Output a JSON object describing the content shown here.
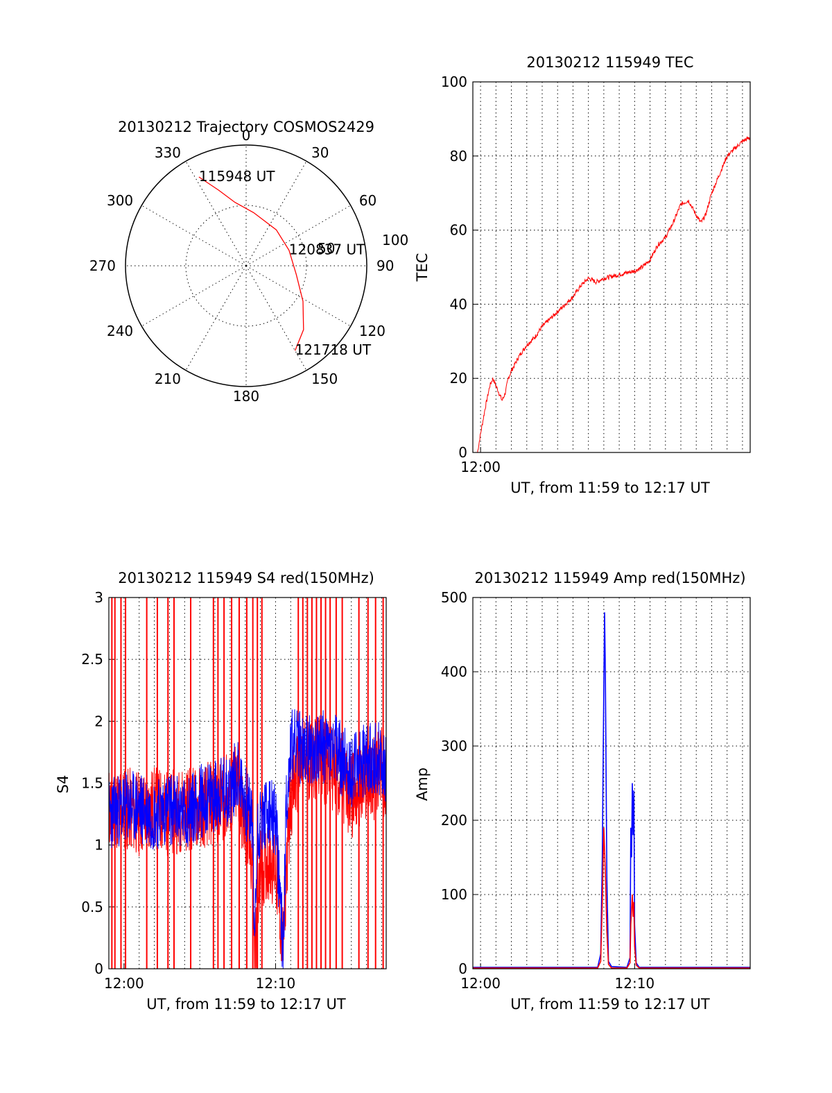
{
  "figure": {
    "background": "#ffffff"
  },
  "chart_data": [
    {
      "type": "scatter",
      "subtype": "polar-trajectory",
      "title": "20130212 Trajectory COSMOS2429",
      "azimuth_labels": [
        "0",
        "30",
        "60",
        "90",
        "120",
        "150",
        "180",
        "210",
        "240",
        "270",
        "300",
        "330"
      ],
      "radial_label": "100",
      "inner_circle_label": "50",
      "series": [
        {
          "color": "#ff0000",
          "points": [
            {
              "az": 332,
              "el": 15
            },
            {
              "az": 340,
              "el": 30
            },
            {
              "az": 350,
              "el": 42
            },
            {
              "az": 8,
              "el": 50
            },
            {
              "az": 40,
              "el": 55
            },
            {
              "az": 70,
              "el": 56
            },
            {
              "az": 100,
              "el": 52
            },
            {
              "az": 122,
              "el": 40
            },
            {
              "az": 138,
              "el": 26
            },
            {
              "az": 150,
              "el": 17
            }
          ]
        }
      ],
      "annotations": [
        {
          "text": "115948 UT",
          "az": 332,
          "el": 15
        },
        {
          "text": "120837 UT",
          "az": 70,
          "el": 56
        },
        {
          "text": "121718 UT",
          "az": 150,
          "el": 17
        }
      ]
    },
    {
      "type": "line",
      "title": "20130212 115949 TEC",
      "xlabel": "UT, from 11:59 to 12:17 UT",
      "ylabel": "TEC",
      "xlim": [
        -0.5,
        17.5
      ],
      "ylim": [
        0,
        100
      ],
      "yticks": [
        0,
        20,
        40,
        60,
        80,
        100
      ],
      "xticks": [
        {
          "value": 0,
          "label": "12:00"
        }
      ],
      "grid": true,
      "series": [
        {
          "color": "#ff0000",
          "x": [
            -0.2,
            0.0,
            0.3,
            0.6,
            0.8,
            1.0,
            1.2,
            1.4,
            1.6,
            1.8,
            2.0,
            2.5,
            3.0,
            3.5,
            4.0,
            4.5,
            5.0,
            5.5,
            6.0,
            6.5,
            7.0,
            7.5,
            8.0,
            9.0,
            10.0,
            10.5,
            11.0,
            11.5,
            12.0,
            12.5,
            13.0,
            13.5,
            14.0,
            14.3,
            14.6,
            15.0,
            15.5,
            16.0,
            16.5,
            17.0,
            17.5
          ],
          "y": [
            0,
            5,
            12,
            18,
            20,
            18,
            16,
            14,
            16,
            20,
            22,
            26,
            29,
            31,
            34,
            36,
            38,
            40,
            42,
            45,
            47,
            46,
            47,
            48,
            49,
            50,
            52,
            56,
            58,
            62,
            67,
            68,
            64,
            62,
            64,
            70,
            75,
            80,
            82,
            84,
            85
          ]
        }
      ]
    },
    {
      "type": "line",
      "title": "20130212 115949 S4 red(150MHz)",
      "xlabel": "UT, from 11:59 to 12:17 UT",
      "ylabel": "S4",
      "xlim": [
        -1.0,
        17.3
      ],
      "ylim": [
        0,
        3
      ],
      "yticks": [
        0,
        0.5,
        1,
        1.5,
        2,
        2.5,
        3
      ],
      "ytick_labels": [
        "0",
        "0.5",
        "1",
        "1.5",
        "2",
        "2.5",
        "3"
      ],
      "xticks": [
        {
          "value": 0,
          "label": "12:00"
        },
        {
          "value": 10,
          "label": "12:10"
        }
      ],
      "grid": true,
      "red_spike_times": [
        -0.8,
        -0.6,
        -0.2,
        0.1,
        1.5,
        2.2,
        2.9,
        3.3,
        4.4,
        5.9,
        6.2,
        6.6,
        7.1,
        7.6,
        8.1,
        8.5,
        8.8,
        9.1,
        11.5,
        11.8,
        12.1,
        12.4,
        12.7,
        13.0,
        13.3,
        13.6,
        14.0,
        14.4,
        15.5,
        16.1,
        16.6,
        17.1
      ],
      "series": [
        {
          "name_hidden": "red",
          "color": "#ff0000",
          "x": [
            -1.0,
            0.0,
            1.0,
            2.0,
            3.0,
            4.0,
            5.0,
            6.0,
            7.0,
            7.5,
            8.0,
            8.5,
            8.6,
            8.8,
            9.0,
            9.5,
            10.0,
            10.5,
            10.7,
            11.0,
            11.5,
            12.0,
            13.0,
            14.0,
            15.0,
            16.0,
            17.0,
            17.3
          ],
          "y": [
            1.3,
            1.3,
            1.25,
            1.3,
            1.25,
            1.3,
            1.3,
            1.35,
            1.4,
            1.5,
            1.1,
            0.9,
            0.1,
            0.4,
            0.8,
            0.9,
            0.85,
            0.15,
            0.8,
            1.4,
            1.6,
            1.7,
            1.7,
            1.6,
            1.4,
            1.5,
            1.6,
            1.5
          ]
        },
        {
          "name_hidden": "blue",
          "color": "#0000ff",
          "x": [
            -1.0,
            0.0,
            1.0,
            2.0,
            3.0,
            4.0,
            5.0,
            6.0,
            7.0,
            7.5,
            8.0,
            8.5,
            8.6,
            8.8,
            9.0,
            9.5,
            10.0,
            10.5,
            10.7,
            11.0,
            11.5,
            12.0,
            13.0,
            14.0,
            15.0,
            16.0,
            17.0,
            17.3
          ],
          "y": [
            1.25,
            1.3,
            1.3,
            1.25,
            1.3,
            1.25,
            1.35,
            1.4,
            1.45,
            1.6,
            1.35,
            1.2,
            0.1,
            1.1,
            1.2,
            1.25,
            1.2,
            0.15,
            1.3,
            1.8,
            1.8,
            1.75,
            1.8,
            1.75,
            1.6,
            1.7,
            1.7,
            1.6
          ]
        }
      ]
    },
    {
      "type": "line",
      "title": "20130212 115949 Amp red(150MHz)",
      "xlabel": "UT, from 11:59 to 12:17 UT",
      "ylabel": "Amp",
      "xlim": [
        -0.5,
        17.5
      ],
      "ylim": [
        0,
        500
      ],
      "yticks": [
        0,
        100,
        200,
        300,
        400,
        500
      ],
      "xticks": [
        {
          "value": 0,
          "label": "12:00"
        },
        {
          "value": 10,
          "label": "12:10"
        }
      ],
      "grid": true,
      "series": [
        {
          "name_hidden": "blue",
          "color": "#0000ff",
          "x": [
            -0.5,
            7.6,
            7.8,
            7.9,
            8.0,
            8.05,
            8.1,
            8.2,
            8.3,
            8.5,
            9.5,
            9.7,
            9.75,
            9.8,
            9.85,
            9.9,
            9.95,
            10.0,
            10.1,
            10.3,
            17.5
          ],
          "y": [
            2,
            2,
            20,
            150,
            380,
            480,
            400,
            120,
            10,
            3,
            2,
            15,
            190,
            150,
            250,
            180,
            240,
            60,
            8,
            2,
            2
          ]
        },
        {
          "name_hidden": "red",
          "color": "#ff0000",
          "x": [
            -0.5,
            7.6,
            7.8,
            7.9,
            8.0,
            8.05,
            8.1,
            8.2,
            8.3,
            8.5,
            9.5,
            9.7,
            9.75,
            9.8,
            9.85,
            9.9,
            9.95,
            10.0,
            10.1,
            10.3,
            17.5
          ],
          "y": [
            1,
            1,
            10,
            90,
            190,
            160,
            130,
            50,
            6,
            1,
            1,
            8,
            60,
            80,
            100,
            70,
            90,
            30,
            5,
            1,
            1
          ]
        }
      ]
    }
  ]
}
